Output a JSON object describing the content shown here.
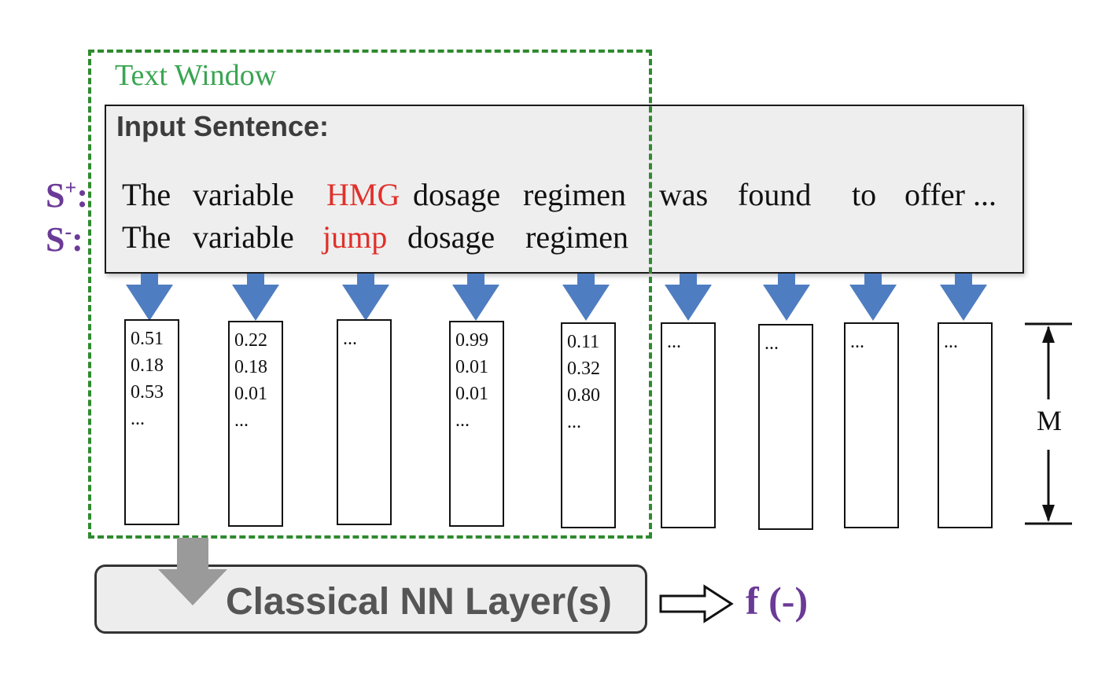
{
  "text_window_label": "Text Window",
  "input_title": "Input Sentence:",
  "positive_label": "S",
  "positive_sup": "+",
  "negative_label": "S",
  "negative_sup": "-",
  "label_colon": ":",
  "positive_sentence": [
    "The",
    "variable",
    "HMG",
    "dosage",
    "regimen",
    "was",
    "found",
    "to",
    "offer ..."
  ],
  "negative_sentence": [
    "The",
    "variable",
    "jump",
    "dosage",
    "regimen"
  ],
  "highlight_index": 2,
  "vectors": [
    {
      "values": [
        "0.51",
        "0.18",
        "0.53",
        "..."
      ]
    },
    {
      "values": [
        "0.22",
        "0.18",
        "0.01",
        "..."
      ]
    },
    {
      "values": [
        "..."
      ]
    },
    {
      "values": [
        "0.99",
        "0.01",
        "0.01",
        "..."
      ]
    },
    {
      "values": [
        "0.11",
        "0.32",
        "0.80",
        "..."
      ]
    },
    {
      "values": [
        "..."
      ]
    },
    {
      "values": [
        "..."
      ]
    },
    {
      "values": [
        "..."
      ]
    },
    {
      "values": [
        "..."
      ]
    }
  ],
  "dimension_label": "M",
  "nn_layer_label": "Classical NN Layer(s)",
  "output_label": "f (-)",
  "colors": {
    "text_window": "#2f8a2f",
    "text_window_label": "#3aa552",
    "highlight": "#e0302a",
    "sample_label": "#6b3a97",
    "arrow": "#4f7dc1",
    "gray_arrow": "#9a9a9a"
  }
}
